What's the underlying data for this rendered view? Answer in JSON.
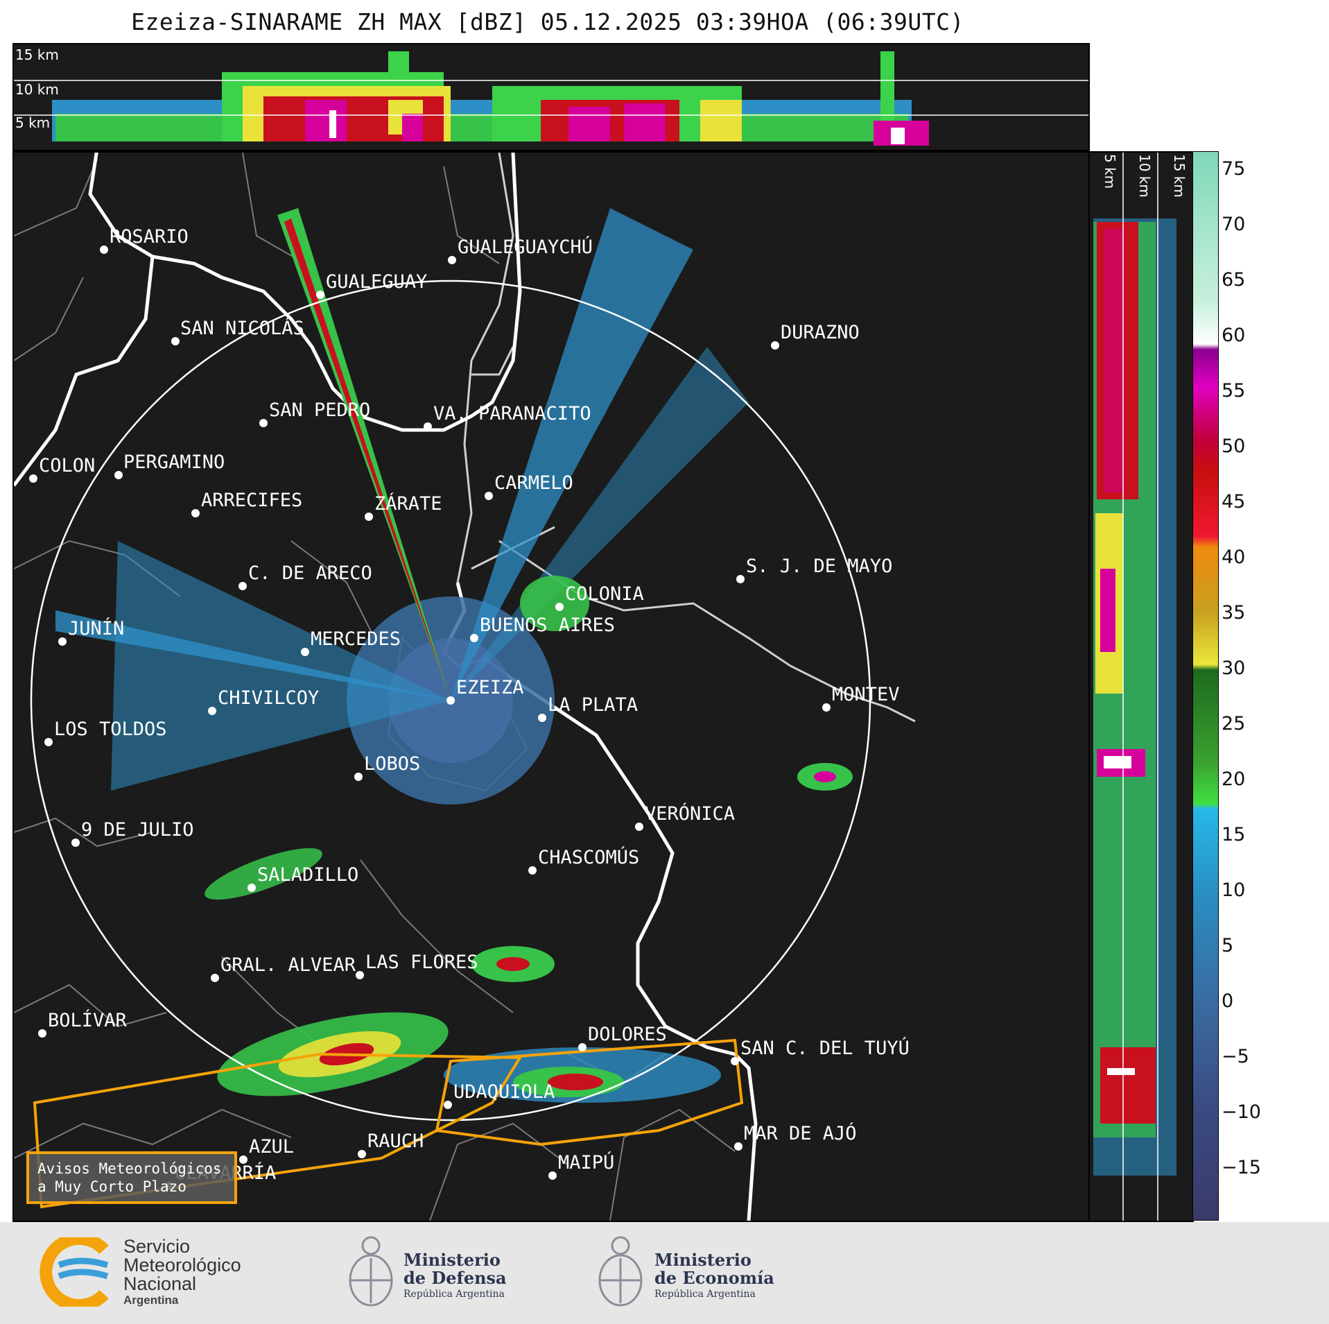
{
  "title": "Ezeiza-SINARAME ZH MAX [dBZ] 05.12.2025 03:39HOA (06:39UTC)",
  "top_panel": {
    "height_labels": [
      "15 km",
      "10 km",
      "5 km"
    ]
  },
  "side_panel": {
    "height_labels": [
      "5 km",
      "10 km",
      "15 km"
    ]
  },
  "colorbar": {
    "ticks": [
      "75",
      "70",
      "65",
      "60",
      "55",
      "50",
      "45",
      "40",
      "35",
      "30",
      "25",
      "20",
      "15",
      "10",
      "5",
      "0",
      "−5",
      "−10",
      "−15"
    ],
    "range_dbz": [
      -20,
      77
    ]
  },
  "cities": [
    {
      "name": "ROSARIO"
    },
    {
      "name": "GUALEGUAYCHÚ"
    },
    {
      "name": "GUALEGUAY"
    },
    {
      "name": "SAN NICOLÁS"
    },
    {
      "name": "DURAZNO"
    },
    {
      "name": "SAN PEDRO"
    },
    {
      "name": "VA. PARANACITO"
    },
    {
      "name": "COLON"
    },
    {
      "name": "PERGAMINO"
    },
    {
      "name": "CARMELO"
    },
    {
      "name": "ARRECIFES"
    },
    {
      "name": "ZÁRATE"
    },
    {
      "name": "C. DE ARECO"
    },
    {
      "name": "S. J. DE MAYO"
    },
    {
      "name": "COLONIA"
    },
    {
      "name": "JUNÍN"
    },
    {
      "name": "BUENOS AIRES"
    },
    {
      "name": "MERCEDES"
    },
    {
      "name": "MONTEV"
    },
    {
      "name": "CHIVILCOY"
    },
    {
      "name": "EZEIZA"
    },
    {
      "name": "LA PLATA"
    },
    {
      "name": "LOS TOLDOS"
    },
    {
      "name": "LOBOS"
    },
    {
      "name": "VERÓNICA"
    },
    {
      "name": "9 DE JULIO"
    },
    {
      "name": "CHASCOMÚS"
    },
    {
      "name": "SALADILLO"
    },
    {
      "name": "GRAL. ALVEAR"
    },
    {
      "name": "LAS FLORES"
    },
    {
      "name": "BOLÍVAR"
    },
    {
      "name": "DOLORES"
    },
    {
      "name": "SAN C. DEL TUYÚ"
    },
    {
      "name": "UDAQUIOLA"
    },
    {
      "name": "AZUL"
    },
    {
      "name": "RAUCH"
    },
    {
      "name": "MAR DE AJÓ"
    },
    {
      "name": "MAIPÚ"
    },
    {
      "name": "OLAVARRÍA"
    }
  ],
  "avisos": {
    "line1": "Avisos Meteorológicos",
    "line2": "a Muy Corto Plazo"
  },
  "footer": {
    "smn": {
      "line1": "Servicio",
      "line2": "Meteorológico",
      "line3": "Nacional",
      "line4": "Argentina"
    },
    "defensa": {
      "line1": "Ministerio",
      "line2": "de Defensa",
      "line3": "República Argentina"
    },
    "economia": {
      "line1": "Ministerio",
      "line2": "de Economía",
      "line3": "República Argentina"
    }
  },
  "colors": {
    "background": "#1b1b1b",
    "range_ring": "#ffffff",
    "warning_polygon": "#f5a30a",
    "smn_blue": "#3a9fd8",
    "smn_orange": "#f5a30a"
  }
}
